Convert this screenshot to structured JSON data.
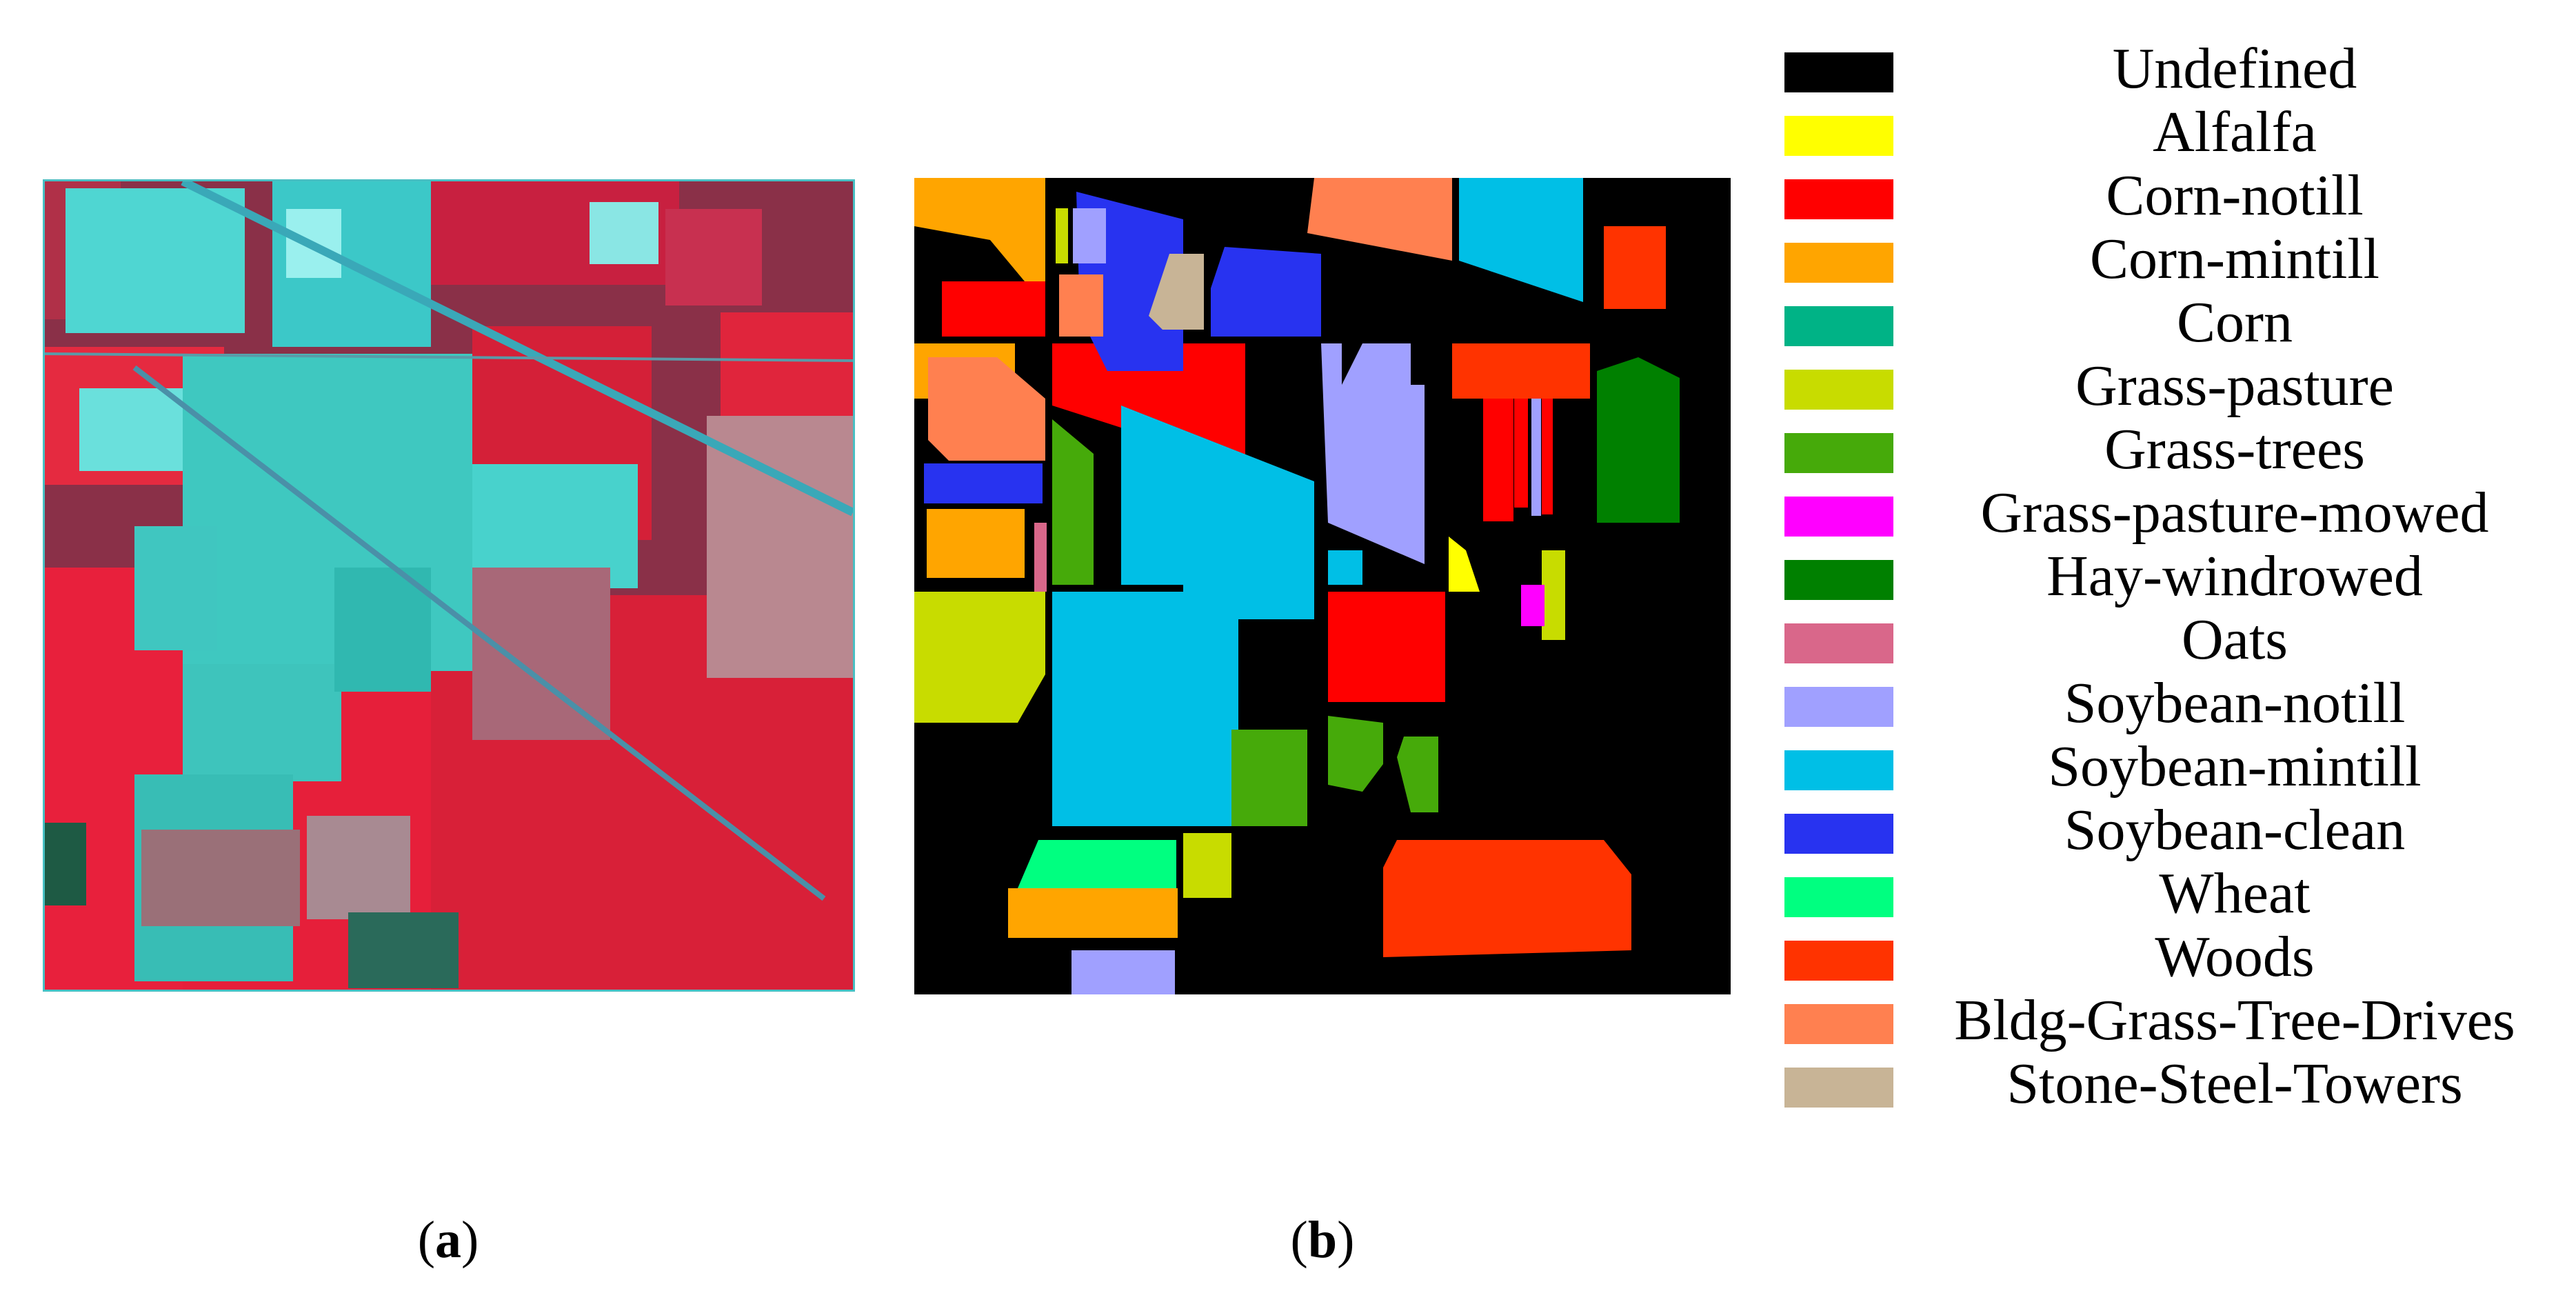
{
  "panels": {
    "a": {
      "caption": "a"
    },
    "b": {
      "caption": "b"
    }
  },
  "legend": [
    {
      "label": "Undefined",
      "color": "#000000"
    },
    {
      "label": "Alfalfa",
      "color": "#ffff00"
    },
    {
      "label": "Corn-notill",
      "color": "#ff0000"
    },
    {
      "label": "Corn-mintill",
      "color": "#ffa500"
    },
    {
      "label": "Corn",
      "color": "#00b386"
    },
    {
      "label": "Grass-pasture",
      "color": "#c8dc00"
    },
    {
      "label": "Grass-trees",
      "color": "#46aa0a"
    },
    {
      "label": "Grass-pasture-mowed",
      "color": "#ff00ff"
    },
    {
      "label": "Hay-windrowed",
      "color": "#008000"
    },
    {
      "label": "Oats",
      "color": "#d9678a"
    },
    {
      "label": "Soybean-notill",
      "color": "#a0a0ff"
    },
    {
      "label": "Soybean-mintill",
      "color": "#00bfe6"
    },
    {
      "label": "Soybean-clean",
      "color": "#2833f0"
    },
    {
      "label": "Wheat",
      "color": "#00ff80"
    },
    {
      "label": "Woods",
      "color": "#ff3300"
    },
    {
      "label": "Bldg-Grass-Tree-Drives",
      "color": "#ff8050"
    },
    {
      "label": "Stone-Steel-Towers",
      "color": "#c8b496"
    }
  ]
}
